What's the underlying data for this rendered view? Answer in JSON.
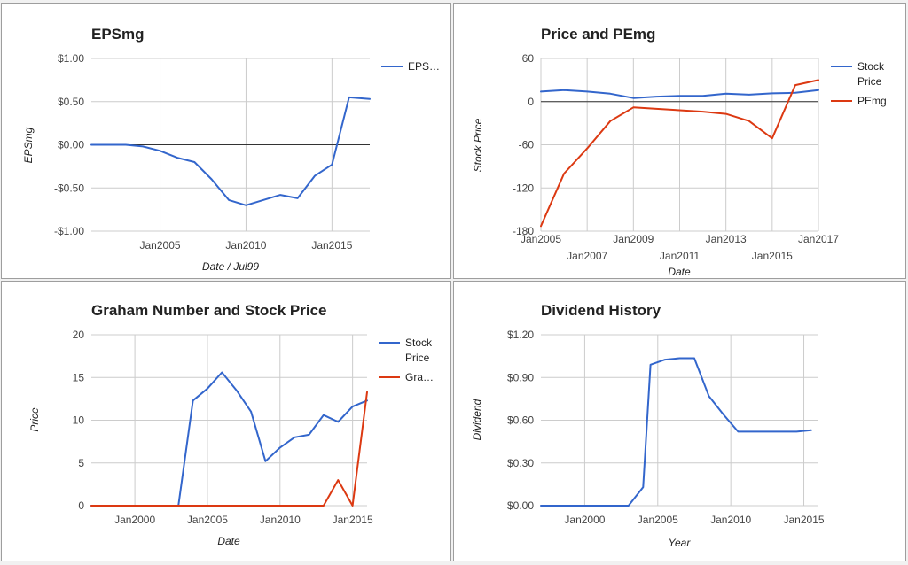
{
  "chart_data": [
    {
      "type": "line",
      "title": "EPSmg",
      "xlabel": "Date / Jul99",
      "ylabel": "EPSmg",
      "x_ticks": [
        "Jan2005",
        "Jan2010",
        "Jan2015"
      ],
      "x_tick_positions": [
        2005,
        2010,
        2015
      ],
      "y_ticks": [
        "$1.00",
        "$0.50",
        "$0.00",
        "-$0.50",
        "-$1.00"
      ],
      "y_tick_values": [
        1.0,
        0.5,
        0.0,
        -0.5,
        -1.0
      ],
      "xlim": [
        2001,
        2017.2
      ],
      "ylim": [
        -1.0,
        1.0
      ],
      "zero_line": true,
      "grid": true,
      "legend_position": "right",
      "series": [
        {
          "name": "EPS…",
          "color": "#3366cc",
          "points": [
            [
              2001,
              0.0
            ],
            [
              2002,
              0.0
            ],
            [
              2003,
              0.0
            ],
            [
              2004,
              -0.02
            ],
            [
              2005,
              -0.07
            ],
            [
              2006,
              -0.15
            ],
            [
              2007,
              -0.2
            ],
            [
              2008,
              -0.4
            ],
            [
              2009,
              -0.64
            ],
            [
              2010,
              -0.7
            ],
            [
              2011,
              -0.64
            ],
            [
              2012,
              -0.58
            ],
            [
              2013,
              -0.62
            ],
            [
              2014,
              -0.36
            ],
            [
              2015,
              -0.23
            ],
            [
              2016,
              0.55
            ],
            [
              2017.2,
              0.53
            ]
          ]
        }
      ]
    },
    {
      "type": "line",
      "title": "Price and PEmg",
      "xlabel": "Date",
      "ylabel": "Stock Price",
      "x_ticks_upper": [
        "Jan2005",
        "Jan2009",
        "Jan2013",
        "Jan2017"
      ],
      "x_ticks_upper_positions": [
        2005,
        2009,
        2013,
        2017
      ],
      "x_ticks_lower": [
        "Jan2007",
        "Jan2011",
        "Jan2015"
      ],
      "x_ticks_lower_positions": [
        2007,
        2011,
        2015
      ],
      "y_ticks": [
        "60",
        "0",
        "-60",
        "-120",
        "-180"
      ],
      "y_tick_values": [
        60,
        0,
        -60,
        -120,
        -180
      ],
      "xlim": [
        2005,
        2017
      ],
      "ylim": [
        -180,
        60
      ],
      "zero_line": true,
      "grid": true,
      "legend_position": "right",
      "series": [
        {
          "name": "Stock Price",
          "color": "#3366cc",
          "points": [
            [
              2005,
              14
            ],
            [
              2006,
              16
            ],
            [
              2007,
              14
            ],
            [
              2008,
              11
            ],
            [
              2009,
              5
            ],
            [
              2010,
              7
            ],
            [
              2011,
              8
            ],
            [
              2012,
              8
            ],
            [
              2013,
              11
            ],
            [
              2014,
              9.7
            ],
            [
              2015,
              11.5
            ],
            [
              2016,
              12.3
            ],
            [
              2017,
              16
            ]
          ]
        },
        {
          "name": "PEmg",
          "color": "#dc3912",
          "points": [
            [
              2005,
              -173
            ],
            [
              2006,
              -100
            ],
            [
              2007,
              -65
            ],
            [
              2008,
              -27
            ],
            [
              2009,
              -8
            ],
            [
              2010,
              -10
            ],
            [
              2011,
              -12
            ],
            [
              2012,
              -14
            ],
            [
              2013,
              -17
            ],
            [
              2014,
              -27
            ],
            [
              2015,
              -51
            ],
            [
              2016,
              23
            ],
            [
              2017,
              30
            ]
          ]
        }
      ]
    },
    {
      "type": "line",
      "title": "Graham Number and Stock Price",
      "xlabel": "Date",
      "ylabel": "Price",
      "x_ticks": [
        "Jan2000",
        "Jan2005",
        "Jan2010",
        "Jan2015"
      ],
      "x_tick_positions": [
        2000,
        2005,
        2010,
        2015
      ],
      "y_ticks": [
        "20",
        "15",
        "10",
        "5",
        "0"
      ],
      "y_tick_values": [
        20,
        15,
        10,
        5,
        0
      ],
      "xlim": [
        1997,
        2016
      ],
      "ylim": [
        0,
        20
      ],
      "grid": true,
      "legend_position": "right",
      "series": [
        {
          "name": "Stock Price",
          "color": "#3366cc",
          "points": [
            [
              1997,
              0
            ],
            [
              1998,
              0
            ],
            [
              1999,
              0
            ],
            [
              2000,
              0
            ],
            [
              2001,
              0
            ],
            [
              2002,
              0
            ],
            [
              2003,
              0
            ],
            [
              2004,
              12.3
            ],
            [
              2005,
              13.7
            ],
            [
              2006,
              15.6
            ],
            [
              2007,
              13.5
            ],
            [
              2008,
              11
            ],
            [
              2009,
              5.2
            ],
            [
              2010,
              6.8
            ],
            [
              2011,
              8
            ],
            [
              2012,
              8.3
            ],
            [
              2013,
              10.6
            ],
            [
              2014,
              9.8
            ],
            [
              2015,
              11.6
            ],
            [
              2016,
              12.3
            ]
          ]
        },
        {
          "name": "Gra…",
          "color": "#dc3912",
          "points": [
            [
              1997,
              0
            ],
            [
              1998,
              0
            ],
            [
              1999,
              0
            ],
            [
              2000,
              0
            ],
            [
              2001,
              0
            ],
            [
              2002,
              0
            ],
            [
              2003,
              0
            ],
            [
              2004,
              0
            ],
            [
              2005,
              0
            ],
            [
              2006,
              0
            ],
            [
              2007,
              0
            ],
            [
              2008,
              0
            ],
            [
              2009,
              0
            ],
            [
              2010,
              0
            ],
            [
              2011,
              0
            ],
            [
              2012,
              0
            ],
            [
              2013,
              0
            ],
            [
              2014,
              3
            ],
            [
              2015,
              0
            ],
            [
              2016,
              13.3
            ]
          ]
        }
      ]
    },
    {
      "type": "line",
      "title": "Dividend History",
      "xlabel": "Year",
      "ylabel": "Dividend",
      "x_ticks": [
        "Jan2000",
        "Jan2005",
        "Jan2010",
        "Jan2015"
      ],
      "x_tick_positions": [
        2000,
        2005,
        2010,
        2015
      ],
      "y_ticks": [
        "$1.20",
        "$0.90",
        "$0.60",
        "$0.30",
        "$0.00"
      ],
      "y_tick_values": [
        1.2,
        0.9,
        0.6,
        0.3,
        0.0
      ],
      "xlim": [
        1997,
        2016
      ],
      "ylim": [
        0,
        1.2
      ],
      "grid": true,
      "series": [
        {
          "color": "#3366cc",
          "points": [
            [
              1997,
              0
            ],
            [
              1998,
              0
            ],
            [
              1999,
              0
            ],
            [
              2000,
              0
            ],
            [
              2001,
              0
            ],
            [
              2002,
              0
            ],
            [
              2003,
              0
            ],
            [
              2004,
              0.13
            ],
            [
              2004.5,
              0.99
            ],
            [
              2005.5,
              1.025
            ],
            [
              2006.5,
              1.035
            ],
            [
              2007.5,
              1.035
            ],
            [
              2008.5,
              0.77
            ],
            [
              2009.5,
              0.64
            ],
            [
              2010.5,
              0.52
            ],
            [
              2011.5,
              0.52
            ],
            [
              2012.5,
              0.52
            ],
            [
              2013.5,
              0.52
            ],
            [
              2014.5,
              0.52
            ],
            [
              2015.5,
              0.53
            ]
          ]
        }
      ]
    }
  ]
}
